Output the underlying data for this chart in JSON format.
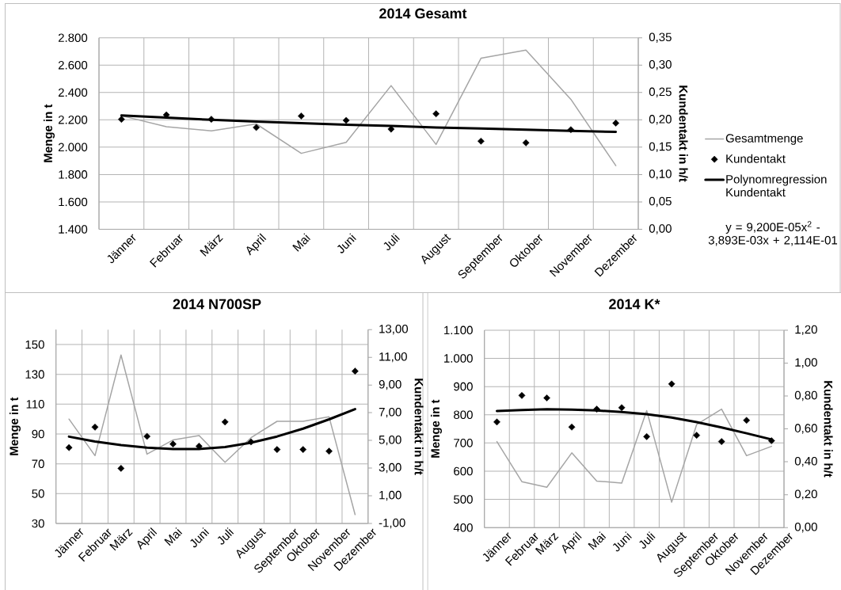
{
  "chart_data": [
    {
      "type": "line",
      "title": "2014 Gesamt",
      "ylabel": "Menge in t",
      "y2label": "Kundentakt in h/t",
      "categories": [
        "Jänner",
        "Februar",
        "März",
        "April",
        "Mai",
        "Juni",
        "Juli",
        "August",
        "September",
        "Oktober",
        "November",
        "Dezember"
      ],
      "ylim": [
        1400,
        2800
      ],
      "yticks": [
        {
          "value": 1400,
          "label": "1.400"
        },
        {
          "value": 1600,
          "label": "1.600"
        },
        {
          "value": 1800,
          "label": "1.800"
        },
        {
          "value": 2000,
          "label": "2.000"
        },
        {
          "value": 2200,
          "label": "2.200"
        },
        {
          "value": 2400,
          "label": "2.400"
        },
        {
          "value": 2600,
          "label": "2.600"
        },
        {
          "value": 2800,
          "label": "2.800"
        }
      ],
      "y2lim": [
        0,
        0.35
      ],
      "y2ticks": [
        {
          "value": 0,
          "label": "0,00"
        },
        {
          "value": 0.05,
          "label": "0,05"
        },
        {
          "value": 0.1,
          "label": "0,10"
        },
        {
          "value": 0.15,
          "label": "0,15"
        },
        {
          "value": 0.2,
          "label": "0,20"
        },
        {
          "value": 0.25,
          "label": "0,25"
        },
        {
          "value": 0.3,
          "label": "0,30"
        },
        {
          "value": 0.35,
          "label": "0,35"
        }
      ],
      "grid": true,
      "legend": "right",
      "series": [
        {
          "name": "Gesamtmenge",
          "color": "#a5a5a5",
          "values": [
            2230,
            2150,
            2120,
            2170,
            1955,
            2035,
            2450,
            2020,
            2650,
            2710,
            2350,
            1865
          ]
        },
        {
          "name": "Kundentakt",
          "type": "scatter",
          "marker": "diamond",
          "axis": "y2",
          "color": "#000000",
          "values": [
            0.201,
            0.209,
            0.201,
            0.186,
            0.207,
            0.199,
            0.183,
            0.211,
            0.161,
            0.158,
            0.182,
            0.194
          ]
        },
        {
          "name": "Polynomregression Kundentakt",
          "axis": "y2",
          "color": "#000000",
          "values": [
            0.208,
            0.204,
            0.2,
            0.197,
            0.194,
            0.191,
            0.189,
            0.186,
            0.184,
            0.182,
            0.18,
            0.178
          ]
        }
      ],
      "annotations": [
        "y = 9,200E-05x$^{2}$ - 3,893E-03x + 2,114E-01"
      ]
    },
    {
      "type": "line",
      "title": "2014 N700SP",
      "ylabel": "Menge in t",
      "y2label": "Kundentakt in h/t",
      "categories": [
        "Jänner",
        "Februar",
        "März",
        "April",
        "Mai",
        "Juni",
        "Juli",
        "August",
        "September",
        "Oktober",
        "November",
        "Dezember"
      ],
      "ylim": [
        30,
        160
      ],
      "yticks": [
        30,
        50,
        70,
        90,
        110,
        130,
        150
      ],
      "y2lim": [
        -1,
        13
      ],
      "y2ticks": [
        {
          "value": -1,
          "label": "-1,00"
        },
        {
          "value": 1,
          "label": "1,00"
        },
        {
          "value": 3,
          "label": "3,00"
        },
        {
          "value": 5,
          "label": "5,00"
        },
        {
          "value": 7,
          "label": "7,00"
        },
        {
          "value": 9,
          "label": "9,00"
        },
        {
          "value": 11,
          "label": "11,00"
        },
        {
          "value": 13,
          "label": "13,00"
        }
      ],
      "grid": true,
      "series": [
        {
          "color": "#a5a5a5",
          "values": [
            100,
            75.5,
            143,
            76.5,
            86,
            89,
            71,
            87.5,
            98.5,
            98.5,
            101.5,
            36
          ]
        },
        {
          "type": "scatter",
          "marker": "diamond",
          "axis": "y2",
          "color": "#000000",
          "values": [
            4.48,
            5.96,
            2.98,
            5.29,
            4.74,
            4.58,
            6.33,
            4.89,
            4.34,
            4.34,
            4.22,
            10.0
          ]
        },
        {
          "axis": "y2",
          "color": "#000000",
          "values": [
            5.27,
            4.92,
            4.66,
            4.47,
            4.37,
            4.38,
            4.52,
            4.83,
            5.28,
            5.85,
            6.52,
            7.26
          ]
        }
      ]
    },
    {
      "type": "line",
      "title": "2014 K*",
      "ylabel": "Menge in t",
      "y2label": "Kundentakt in h/t",
      "categories": [
        "Jänner",
        "Februar",
        "März",
        "April",
        "Mai",
        "Juni",
        "Juli",
        "August",
        "September",
        "Oktober",
        "November",
        "Dezember"
      ],
      "ylim": [
        400,
        1100
      ],
      "yticks": [
        400,
        500,
        600,
        700,
        800,
        900,
        {
          "value": 1000,
          "label": "1.000"
        },
        {
          "value": 1100,
          "label": "1.100"
        }
      ],
      "y2lim": [
        0,
        1.2
      ],
      "y2ticks": [
        {
          "value": 0,
          "label": "0,00"
        },
        {
          "value": 0.2,
          "label": "0,20"
        },
        {
          "value": 0.4,
          "label": "0,40"
        },
        {
          "value": 0.6,
          "label": "0,60"
        },
        {
          "value": 0.8,
          "label": "0,80"
        },
        {
          "value": 1.0,
          "label": "1,00"
        },
        {
          "value": 1.2,
          "label": "1,20"
        }
      ],
      "grid": true,
      "series": [
        {
          "color": "#a5a5a5",
          "values": [
            705,
            563,
            543,
            665,
            565,
            558,
            815,
            490,
            765,
            820,
            655,
            688
          ]
        },
        {
          "type": "scatter",
          "marker": "diamond",
          "axis": "y2",
          "color": "#000000",
          "values": [
            0.642,
            0.803,
            0.788,
            0.611,
            0.72,
            0.729,
            0.553,
            0.873,
            0.561,
            0.523,
            0.652,
            0.528
          ]
        },
        {
          "axis": "y2",
          "color": "#000000",
          "values": [
            0.709,
            0.715,
            0.719,
            0.717,
            0.712,
            0.702,
            0.689,
            0.669,
            0.641,
            0.609,
            0.573,
            0.536
          ]
        }
      ]
    }
  ]
}
